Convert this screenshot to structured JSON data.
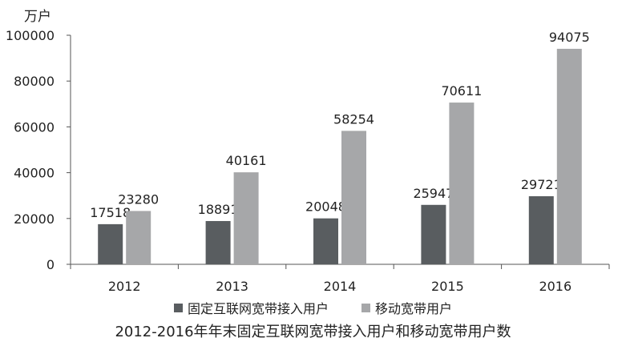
{
  "chart_data": {
    "type": "bar",
    "title": "2012-2016年年末固定互联网宽带接入用户和移动宽带用户数",
    "ylabel": "万户",
    "xlabel": "",
    "categories": [
      "2012",
      "2013",
      "2014",
      "2015",
      "2016"
    ],
    "series": [
      {
        "name": "固定互联网宽带接入用户",
        "color": "#595d60",
        "values": [
          17518,
          18891,
          20048,
          25947,
          29721
        ]
      },
      {
        "name": "移动宽带用户",
        "color": "#a6a7a9",
        "values": [
          23280,
          40161,
          58254,
          70611,
          94075
        ]
      }
    ],
    "ylim": [
      0,
      100000
    ],
    "yticks": [
      0,
      20000,
      40000,
      60000,
      80000,
      100000
    ],
    "grid": false,
    "legend": "bottom"
  }
}
